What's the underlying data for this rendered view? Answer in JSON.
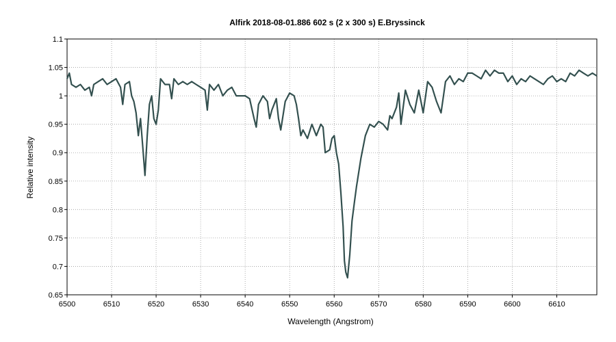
{
  "chart_data": {
    "type": "line",
    "title": "Alfirk  2018-08-01.886  602 s (2 x 300 s)  E.Bryssinck",
    "xlabel": "Wavelength (Angstrom)",
    "ylabel": "Relative intensity",
    "xlim": [
      6500,
      6619
    ],
    "ylim": [
      0.65,
      1.1
    ],
    "x_ticks": [
      6500,
      6510,
      6520,
      6530,
      6540,
      6550,
      6560,
      6570,
      6580,
      6590,
      6600,
      6610
    ],
    "y_ticks": [
      0.65,
      0.7,
      0.75,
      0.8,
      0.85,
      0.9,
      0.95,
      1,
      1.05,
      1.1
    ],
    "grid": true,
    "line_color": "#33504f",
    "series": [
      {
        "x": [
          6500.0,
          6500.5,
          6501.0,
          6502.0,
          6503.0,
          6504.0,
          6505.0,
          6505.5,
          6506.0,
          6507.0,
          6508.0,
          6509.0,
          6510.0,
          6511.0,
          6512.0,
          6512.5,
          6513.0,
          6514.0,
          6514.5,
          6515.0,
          6515.5,
          6516.0,
          6516.5,
          6517.0,
          6517.5,
          6518.0,
          6518.5,
          6519.0,
          6519.5,
          6520.0,
          6520.5,
          6521.0,
          6522.0,
          6523.0,
          6523.5,
          6524.0,
          6525.0,
          6526.0,
          6527.0,
          6528.0,
          6529.0,
          6530.0,
          6531.0,
          6531.5,
          6532.0,
          6533.0,
          6534.0,
          6535.0,
          6536.0,
          6537.0,
          6538.0,
          6539.0,
          6540.0,
          6541.0,
          6542.0,
          6542.5,
          6543.0,
          6544.0,
          6545.0,
          6545.5,
          6546.0,
          6547.0,
          6547.5,
          6548.0,
          6549.0,
          6550.0,
          6551.0,
          6551.5,
          6552.0,
          6552.5,
          6553.0,
          6554.0,
          6555.0,
          6556.0,
          6557.0,
          6557.5,
          6558.0,
          6559.0,
          6559.5,
          6560.0,
          6560.5,
          6561.0,
          6561.5,
          6562.0,
          6562.3,
          6562.6,
          6563.0,
          6563.5,
          6564.0,
          6564.5,
          6565.0,
          6566.0,
          6567.0,
          6568.0,
          6569.0,
          6570.0,
          6571.0,
          6572.0,
          6572.5,
          6573.0,
          6574.0,
          6574.5,
          6575.0,
          6576.0,
          6577.0,
          6578.0,
          6579.0,
          6580.0,
          6581.0,
          6582.0,
          6583.0,
          6584.0,
          6585.0,
          6586.0,
          6587.0,
          6588.0,
          6589.0,
          6590.0,
          6591.0,
          6592.0,
          6593.0,
          6594.0,
          6595.0,
          6596.0,
          6597.0,
          6598.0,
          6599.0,
          6600.0,
          6601.0,
          6602.0,
          6603.0,
          6604.0,
          6605.0,
          6606.0,
          6607.0,
          6608.0,
          6609.0,
          6610.0,
          6611.0,
          6612.0,
          6613.0,
          6614.0,
          6615.0,
          6616.0,
          6617.0,
          6618.0,
          6619.0
        ],
        "y": [
          1.03,
          1.04,
          1.02,
          1.015,
          1.02,
          1.01,
          1.015,
          1.0,
          1.02,
          1.025,
          1.03,
          1.02,
          1.025,
          1.03,
          1.015,
          0.985,
          1.02,
          1.025,
          1.0,
          0.99,
          0.97,
          0.93,
          0.96,
          0.91,
          0.86,
          0.93,
          0.985,
          1.0,
          0.96,
          0.95,
          0.975,
          1.03,
          1.02,
          1.02,
          0.995,
          1.03,
          1.02,
          1.025,
          1.02,
          1.025,
          1.02,
          1.015,
          1.01,
          0.975,
          1.02,
          1.01,
          1.02,
          1.0,
          1.01,
          1.015,
          1.0,
          1.0,
          1.0,
          0.995,
          0.96,
          0.945,
          0.985,
          1.0,
          0.99,
          0.96,
          0.975,
          0.995,
          0.96,
          0.94,
          0.99,
          1.005,
          1.0,
          0.985,
          0.96,
          0.93,
          0.94,
          0.925,
          0.95,
          0.93,
          0.95,
          0.945,
          0.9,
          0.905,
          0.925,
          0.93,
          0.9,
          0.88,
          0.83,
          0.77,
          0.71,
          0.69,
          0.68,
          0.72,
          0.78,
          0.81,
          0.84,
          0.89,
          0.93,
          0.95,
          0.945,
          0.955,
          0.95,
          0.94,
          0.965,
          0.96,
          0.98,
          1.005,
          0.95,
          1.01,
          0.985,
          0.97,
          1.01,
          0.97,
          1.025,
          1.015,
          0.99,
          0.97,
          1.025,
          1.035,
          1.02,
          1.03,
          1.025,
          1.04,
          1.04,
          1.035,
          1.03,
          1.045,
          1.035,
          1.045,
          1.04,
          1.04,
          1.025,
          1.035,
          1.02,
          1.03,
          1.025,
          1.035,
          1.03,
          1.025,
          1.02,
          1.03,
          1.035,
          1.025,
          1.03,
          1.025,
          1.04,
          1.035,
          1.045,
          1.04,
          1.035,
          1.04,
          1.035
        ]
      }
    ]
  }
}
